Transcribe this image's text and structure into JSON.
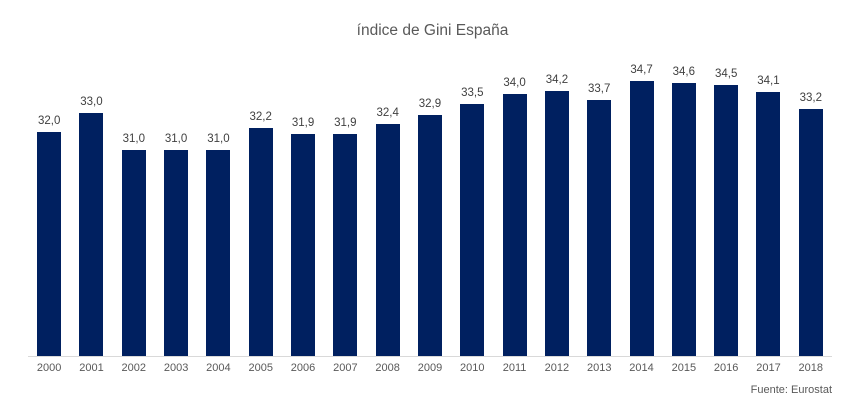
{
  "colors": {
    "bar": "#002060",
    "title_text": "#595959",
    "data_label_text": "#404040",
    "axis_label_text": "#595959",
    "axis_line": "#d9d9d9",
    "background": "#ffffff"
  },
  "chart_data": {
    "type": "bar",
    "title": "índice de Gini España",
    "source": "Fuente: Eurostat",
    "categories": [
      "2000",
      "2001",
      "2002",
      "2003",
      "2004",
      "2005",
      "2006",
      "2007",
      "2008",
      "2009",
      "2010",
      "2011",
      "2012",
      "2013",
      "2014",
      "2015",
      "2016",
      "2017",
      "2018"
    ],
    "values": [
      32.0,
      33.0,
      31.0,
      31.0,
      31.0,
      32.2,
      31.9,
      31.9,
      32.4,
      32.9,
      33.5,
      34.0,
      34.2,
      33.7,
      34.7,
      34.6,
      34.5,
      34.1,
      33.2
    ],
    "labels": [
      "32,0",
      "33,0",
      "31,0",
      "31,0",
      "31,0",
      "32,2",
      "31,9",
      "31,9",
      "32,4",
      "32,9",
      "33,5",
      "34,0",
      "34,2",
      "33,7",
      "34,7",
      "34,6",
      "34,5",
      "34,1",
      "33,2"
    ],
    "xlabel": "",
    "ylabel": "",
    "ylim": [
      20,
      36
    ],
    "grid": false,
    "legend": false,
    "data_labels": true,
    "decimal_separator": ","
  }
}
